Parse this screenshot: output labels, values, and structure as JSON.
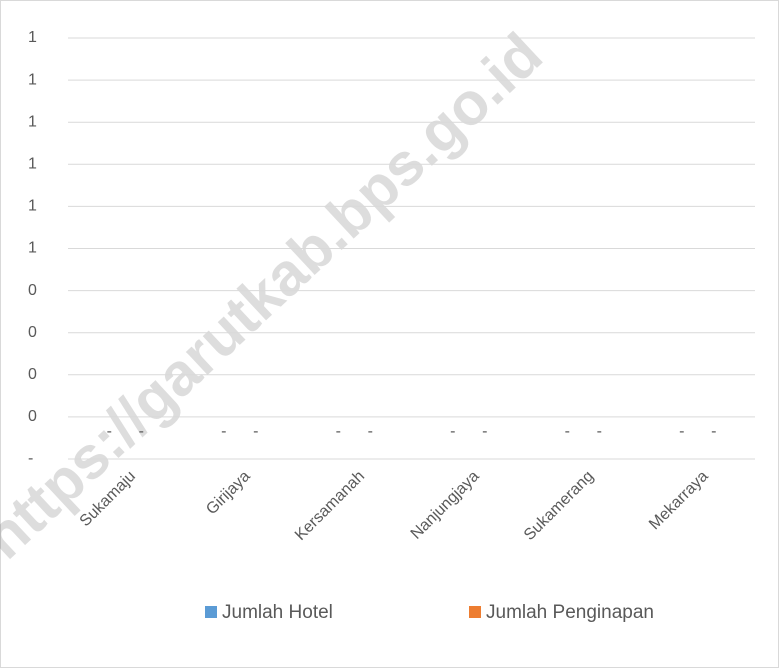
{
  "chart_data": {
    "type": "bar",
    "categories": [
      "Sukamaju",
      "Girijaya",
      "Kersamanah",
      "Nanjungjaya",
      "Sukamerang",
      "Mekarraya"
    ],
    "series": [
      {
        "name": "Jumlah Hotel",
        "color": "#5b9bd5",
        "values": [
          0,
          0,
          0,
          0,
          0,
          0
        ],
        "value_labels": [
          "-",
          "-",
          "-",
          "-",
          "-",
          "-"
        ]
      },
      {
        "name": "Jumlah Penginapan",
        "color": "#ed7d31",
        "values": [
          0,
          0,
          0,
          0,
          0,
          0
        ],
        "value_labels": [
          "-",
          "-",
          "-",
          "-",
          "-",
          "-"
        ]
      }
    ],
    "ylim": [
      0,
      1
    ],
    "yticks": [
      {
        "value": 0,
        "label": "-"
      },
      {
        "value": 0.1,
        "label": "0"
      },
      {
        "value": 0.2,
        "label": "0"
      },
      {
        "value": 0.3,
        "label": "0"
      },
      {
        "value": 0.4,
        "label": "0"
      },
      {
        "value": 0.5,
        "label": "1"
      },
      {
        "value": 0.6,
        "label": "1"
      },
      {
        "value": 0.7,
        "label": "1"
      },
      {
        "value": 0.8,
        "label": "1"
      },
      {
        "value": 0.9,
        "label": "1"
      },
      1
    ],
    "grid": true,
    "legend": "bottom",
    "watermark": "https://garutkab.bps.go.id"
  }
}
